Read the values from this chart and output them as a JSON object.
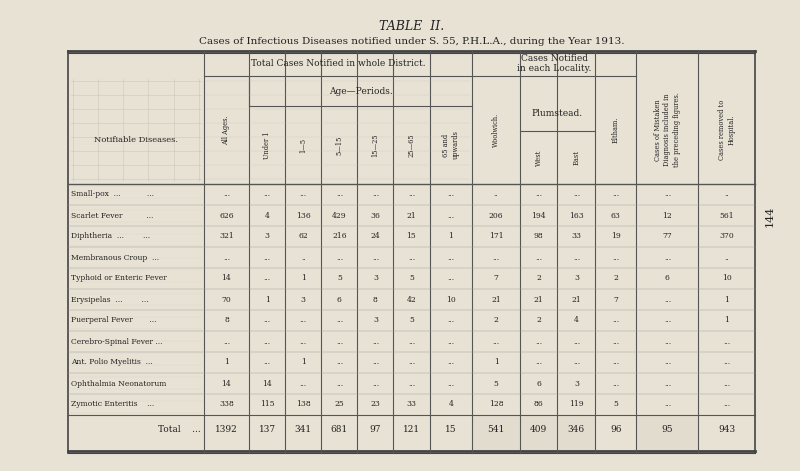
{
  "title1": "TABLE  II.",
  "title2": "Cases of Infectious Diseases notified under S. 55, P.H.L.A., during the Year 1913.",
  "page_number": "144",
  "bg_color": "#e8e2d5",
  "header_groups": {
    "total_cases": "Total Cases Notified in whole District.",
    "age_periods": "Age—Periods.",
    "cases_locality": "Cases Notified\nin each Locality.",
    "plumstead": "Plumstead."
  },
  "col_headers": [
    "All Ages.",
    "Under 1",
    "1—5",
    "5—15",
    "15—25",
    "25—65",
    "65 and\nupwards",
    "Woolwich.",
    "West",
    "East",
    "Eltham.",
    "Cases of Mistaken\nDiagnosis included in\nthe preceding figures.",
    "Cases removed to\nHospital."
  ],
  "row_header": "Notifiable Diseases.",
  "diseases": [
    "Small-pox  ...           ...",
    "Scarlet Fever          ...",
    "Diphtheria  ...        ...",
    "Membranous Croup  ...",
    "Typhoid or Enteric Fever",
    "Erysipelas  ...        ...",
    "Puerperal Fever       ...",
    "Cerebro-Spinal Fever ...",
    "Ant. Polio Myelitis  ...",
    "Ophthalmia Neonatorum",
    "Zymotic Enteritis    ..."
  ],
  "data": [
    [
      "...",
      "...",
      "...",
      "...",
      "...",
      "...",
      "...",
      "..",
      "...",
      "...",
      "...",
      "...",
      ".."
    ],
    [
      "626",
      "4",
      "136",
      "429",
      "36",
      "21",
      "...",
      "206",
      "194",
      "163",
      "63",
      "12",
      "561"
    ],
    [
      "321",
      "3",
      "62",
      "216",
      "24",
      "15",
      "1",
      "171",
      "98",
      "33",
      "19",
      "77",
      "370"
    ],
    [
      "...",
      "...",
      "..",
      "...",
      "...",
      "...",
      "...",
      "...",
      "...",
      "...",
      "...",
      "...",
      ".."
    ],
    [
      "14",
      "...",
      "1",
      "5",
      "3",
      "5",
      "...",
      "7",
      "2",
      "3",
      "2",
      "6",
      "10"
    ],
    [
      "70",
      "1",
      "3",
      "6",
      "8",
      "42",
      "10",
      "21",
      "21",
      "21",
      "7",
      "...",
      "1"
    ],
    [
      "8",
      "...",
      "...",
      "...",
      "3",
      "5",
      "...",
      "2",
      "2",
      "4",
      "...",
      "...",
      "1"
    ],
    [
      "...",
      "...",
      "...",
      "...",
      "...",
      "...",
      "...",
      "...",
      "...",
      "...",
      "...",
      "...",
      "..."
    ],
    [
      "1",
      "...",
      "1",
      "...",
      "...",
      "...",
      "...",
      "1",
      "...",
      "...",
      "...",
      "...",
      "..."
    ],
    [
      "14",
      "14",
      "...",
      "...",
      "...",
      "...",
      "...",
      "5",
      "6",
      "3",
      "...",
      "...",
      "..."
    ],
    [
      "338",
      "115",
      "138",
      "25",
      "23",
      "33",
      "4",
      "128",
      "86",
      "119",
      "5",
      "...",
      "..."
    ]
  ],
  "total_row": [
    "1392",
    "137",
    "341",
    "681",
    "97",
    "121",
    "15",
    "541",
    "409",
    "346",
    "96",
    "95",
    "943"
  ]
}
